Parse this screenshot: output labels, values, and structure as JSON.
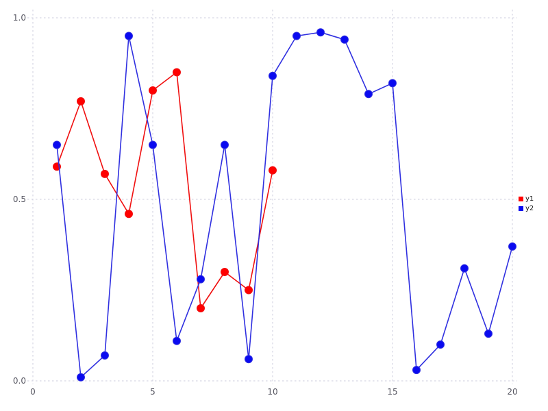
{
  "figure": {
    "background_color": "#ffffff",
    "grid_color": "#cdcdde",
    "tick_label_color": "#555560",
    "legend": [
      {
        "label": "y1",
        "color": "#ff0000"
      },
      {
        "label": "y2",
        "color": "#0a0af0"
      }
    ]
  },
  "chart_data": {
    "type": "line",
    "grid": true,
    "legend_position": "right-middle",
    "xlim": [
      -0.25,
      20.25
    ],
    "ylim": [
      -0.02,
      1.02
    ],
    "x_tick_values": [
      0,
      5,
      10,
      15,
      20
    ],
    "x_tick_labels": [
      "0",
      "5",
      "10",
      "15",
      "20"
    ],
    "y_tick_values": [
      0,
      0.5,
      1
    ],
    "y_tick_labels": [
      "0.0",
      "0.5",
      "1.0"
    ],
    "series": [
      {
        "name": "y1",
        "color": "#ff0000",
        "line_color": "#f01010",
        "marker": "circle",
        "x": [
          1,
          2,
          3,
          4,
          5,
          6,
          7,
          8,
          9,
          10
        ],
        "values": [
          0.59,
          0.77,
          0.57,
          0.46,
          0.8,
          0.85,
          0.2,
          0.3,
          0.25,
          0.58
        ]
      },
      {
        "name": "y2",
        "color": "#0a0af0",
        "line_color": "#3030e0",
        "marker": "circle",
        "x": [
          1,
          2,
          3,
          4,
          5,
          6,
          7,
          8,
          9,
          10,
          11,
          12,
          13,
          14,
          15,
          16,
          17,
          18,
          19,
          20
        ],
        "values": [
          0.65,
          0.01,
          0.07,
          0.95,
          0.65,
          0.11,
          0.28,
          0.65,
          0.06,
          0.84,
          0.95,
          0.96,
          0.94,
          0.79,
          0.82,
          0.03,
          0.1,
          0.31,
          0.13,
          0.37
        ]
      }
    ]
  }
}
